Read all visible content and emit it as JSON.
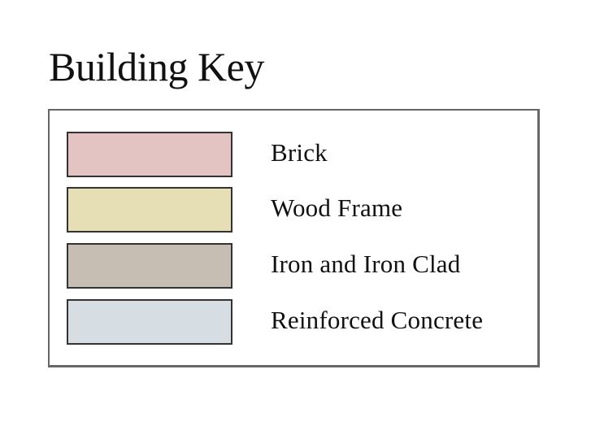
{
  "title": "Building Key",
  "legend": {
    "items": [
      {
        "label": "Brick",
        "color": "#e4c4c3"
      },
      {
        "label": "Wood Frame",
        "color": "#e6dfb6"
      },
      {
        "label": "Iron and Iron Clad",
        "color": "#c6beb2"
      },
      {
        "label": "Reinforced Concrete",
        "color": "#d6dee4"
      }
    ]
  }
}
